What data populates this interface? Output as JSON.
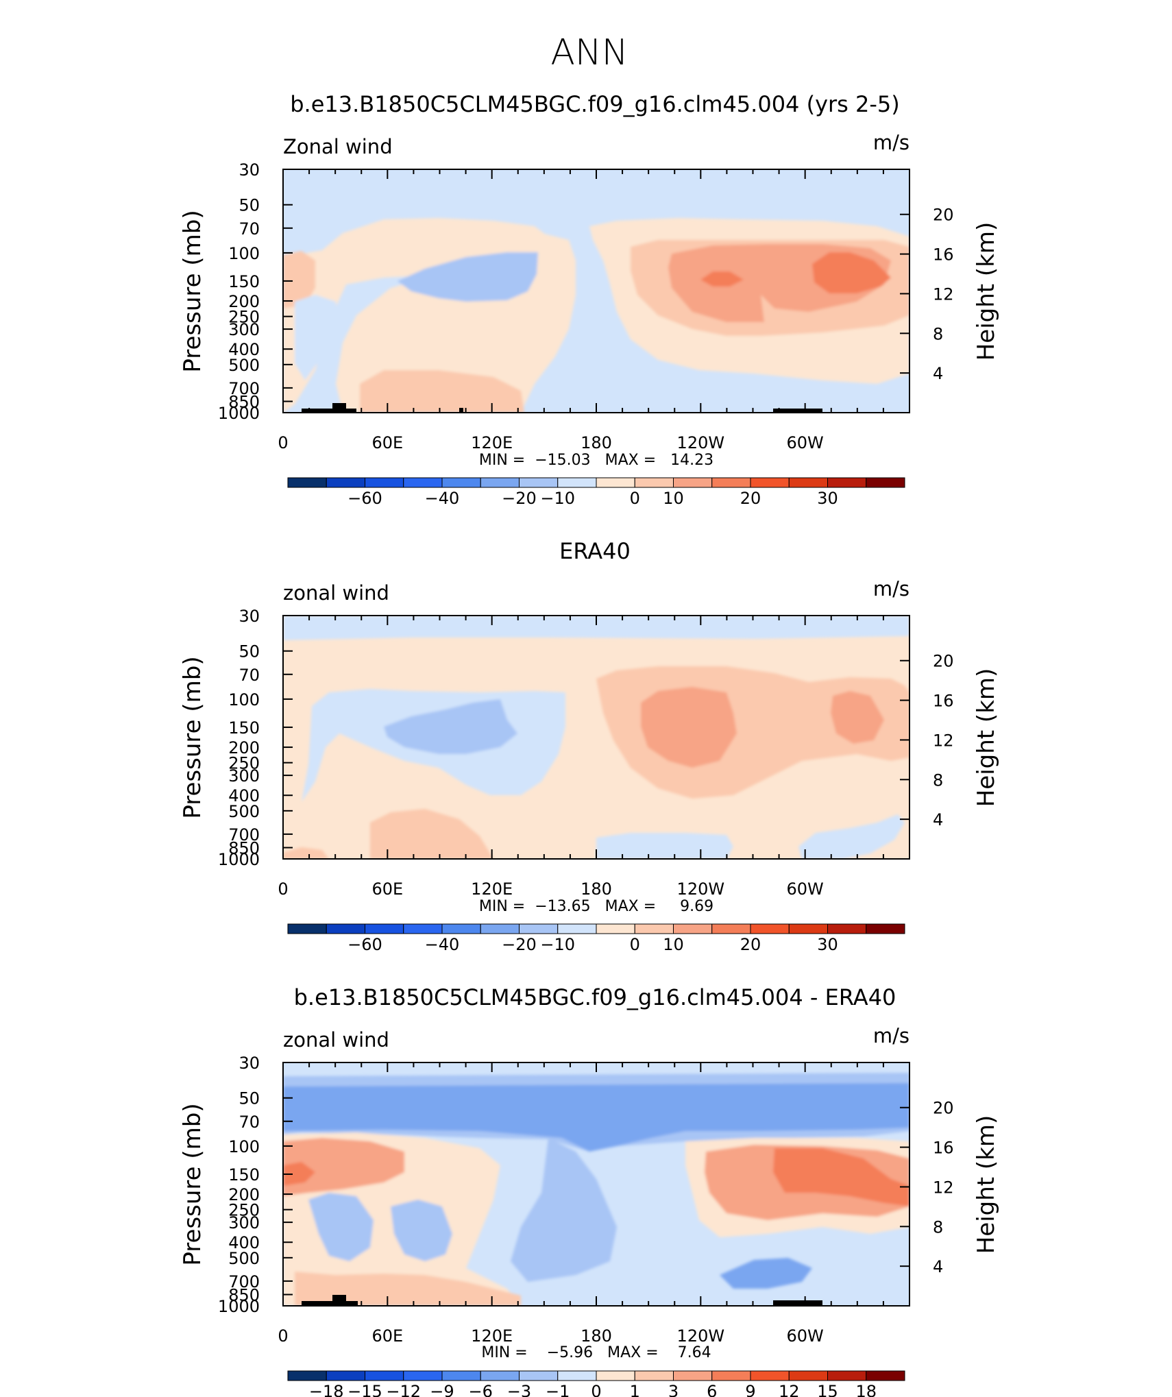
{
  "page_title": "ANN",
  "chart_data": [
    {
      "type": "heatmap",
      "id": "p1",
      "title": "b.e13.B1850C5CLM45BGC.f09_g16.clm45.004 (yrs 2-5)",
      "left_label": "Zonal wind",
      "right_label": "m/s",
      "ylabel": "Pressure (mb)",
      "ylabel_right": "Height (km)",
      "xlabel": "",
      "x_ticks": [
        "0",
        "60E",
        "120E",
        "180",
        "120W",
        "60W"
      ],
      "y_ticks": [
        "30",
        "50",
        "70",
        "100",
        "150",
        "200",
        "250",
        "300",
        "400",
        "500",
        "700",
        "850",
        "1000"
      ],
      "height_ticks": [
        "20",
        "16",
        "12",
        "8",
        "4"
      ],
      "ylim": [
        1000,
        30
      ],
      "stats_text": "MIN =  −15.03   MAX =   14.23",
      "min": -15.03,
      "max": 14.23,
      "colorbar_labels": [
        "−60",
        "−40",
        "−20",
        "−10",
        "0",
        "10",
        "20",
        "30"
      ],
      "colorbar_colors": [
        "#08306b",
        "#0b3fbf",
        "#1752e0",
        "#2a66f0",
        "#4d87ee",
        "#7aa6f0",
        "#a8c5f5",
        "#d2e4fb",
        "#fde6d2",
        "#fbc9ae",
        "#f7a486",
        "#f47e58",
        "#f1542a",
        "#dc3a14",
        "#b81d0c",
        "#7a0000"
      ]
    },
    {
      "type": "heatmap",
      "id": "p2",
      "title": "ERA40",
      "left_label": "zonal wind",
      "right_label": "m/s",
      "ylabel": "Pressure (mb)",
      "ylabel_right": "Height (km)",
      "xlabel": "",
      "x_ticks": [
        "0",
        "60E",
        "120E",
        "180",
        "120W",
        "60W"
      ],
      "y_ticks": [
        "30",
        "50",
        "70",
        "100",
        "150",
        "200",
        "250",
        "300",
        "400",
        "500",
        "700",
        "850",
        "1000"
      ],
      "height_ticks": [
        "20",
        "16",
        "12",
        "8",
        "4"
      ],
      "ylim": [
        1000,
        30
      ],
      "stats_text": "MIN =  −13.65   MAX =     9.69",
      "min": -13.65,
      "max": 9.69,
      "colorbar_labels": [
        "−60",
        "−40",
        "−20",
        "−10",
        "0",
        "10",
        "20",
        "30"
      ],
      "colorbar_colors": [
        "#08306b",
        "#0b3fbf",
        "#1752e0",
        "#2a66f0",
        "#4d87ee",
        "#7aa6f0",
        "#a8c5f5",
        "#d2e4fb",
        "#fde6d2",
        "#fbc9ae",
        "#f7a486",
        "#f47e58",
        "#f1542a",
        "#dc3a14",
        "#b81d0c",
        "#7a0000"
      ]
    },
    {
      "type": "heatmap",
      "id": "p3",
      "title": "b.e13.B1850C5CLM45BGC.f09_g16.clm45.004 - ERA40",
      "left_label": "zonal wind",
      "right_label": "m/s",
      "ylabel": "Pressure (mb)",
      "ylabel_right": "Height (km)",
      "xlabel": "",
      "x_ticks": [
        "0",
        "60E",
        "120E",
        "180",
        "120W",
        "60W"
      ],
      "y_ticks": [
        "30",
        "50",
        "70",
        "100",
        "150",
        "200",
        "250",
        "300",
        "400",
        "500",
        "700",
        "850",
        "1000"
      ],
      "height_ticks": [
        "20",
        "16",
        "12",
        "8",
        "4"
      ],
      "ylim": [
        1000,
        30
      ],
      "stats_text": "MIN =    −5.96   MAX =    7.64",
      "min": -5.96,
      "max": 7.64,
      "colorbar_labels": [
        "−18",
        "−15",
        "−12",
        "−9",
        "−6",
        "−3",
        "−1",
        "0",
        "1",
        "3",
        "6",
        "9",
        "12",
        "15",
        "18"
      ],
      "colorbar_colors": [
        "#08306b",
        "#0b3fbf",
        "#1752e0",
        "#2a66f0",
        "#4d87ee",
        "#7aa6f0",
        "#a8c5f5",
        "#d2e4fb",
        "#fde6d2",
        "#fbc9ae",
        "#f7a486",
        "#f47e58",
        "#f1542a",
        "#dc3a14",
        "#b81d0c",
        "#7a0000"
      ]
    }
  ]
}
